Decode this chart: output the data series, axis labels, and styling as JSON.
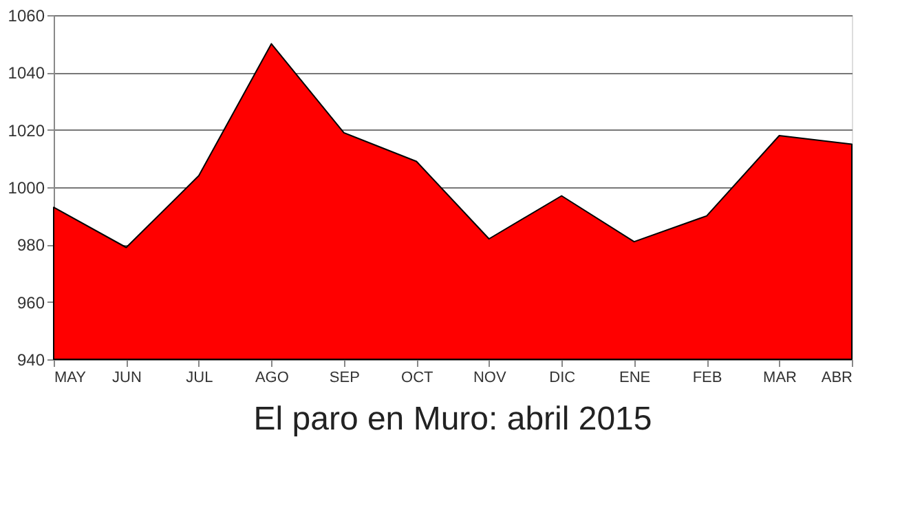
{
  "chart_data": {
    "type": "area",
    "title": "El paro en Muro: abril 2015",
    "categories": [
      "MAY",
      "JUN",
      "JUL",
      "AGO",
      "SEP",
      "OCT",
      "NOV",
      "DIC",
      "ENE",
      "FEB",
      "MAR",
      "ABR"
    ],
    "values": [
      993,
      979,
      1004,
      1050,
      1019,
      1009,
      982,
      997,
      981,
      990,
      1018,
      1015
    ],
    "color": "#ff0000",
    "ylim": [
      940,
      1060
    ],
    "yticks": [
      940,
      960,
      980,
      1000,
      1020,
      1040,
      1060
    ],
    "grid": "y"
  }
}
